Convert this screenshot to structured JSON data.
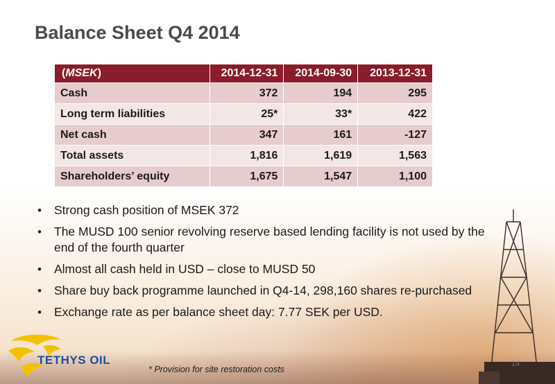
{
  "title": "Balance Sheet Q4 2014",
  "table": {
    "header_unit": "MSEK",
    "columns": [
      "2014-12-31",
      "2014-09-30",
      "2013-12-31"
    ],
    "rows": [
      {
        "label": "Cash",
        "values": [
          "372",
          "194",
          "295"
        ]
      },
      {
        "label": "Long term liabilities",
        "values": [
          "25*",
          "33*",
          "422"
        ]
      },
      {
        "label": "Net cash",
        "values": [
          "347",
          "161",
          "-127"
        ]
      },
      {
        "label": "Total assets",
        "values": [
          "1,816",
          "1,619",
          "1,563"
        ]
      },
      {
        "label": "Shareholders’ equity",
        "values": [
          "1,675",
          "1,547",
          "1,100"
        ]
      }
    ]
  },
  "bullets": [
    "Strong cash position of MSEK 372",
    "The MUSD 100 senior revolving reserve based lending facility is not used by the end of the fourth quarter",
    "Almost all cash held in USD – close to MUSD 50",
    "Share buy back programme launched in Q4-14, 298,160 shares re-purchased",
    "Exchange rate as per balance sheet day: 7.77 SEK per USD."
  ],
  "bullet_symbol": "•",
  "logo_text": "TETHYS OIL",
  "footnote": "* Provision for site restoration costs",
  "page_number": "14",
  "colors": {
    "header_bg": "#8a1c2b",
    "row_dark": "#e7cccd",
    "row_light": "#f3e6e6",
    "logo_blue": "#1b4fa0",
    "logo_gold": "#f2c200"
  }
}
